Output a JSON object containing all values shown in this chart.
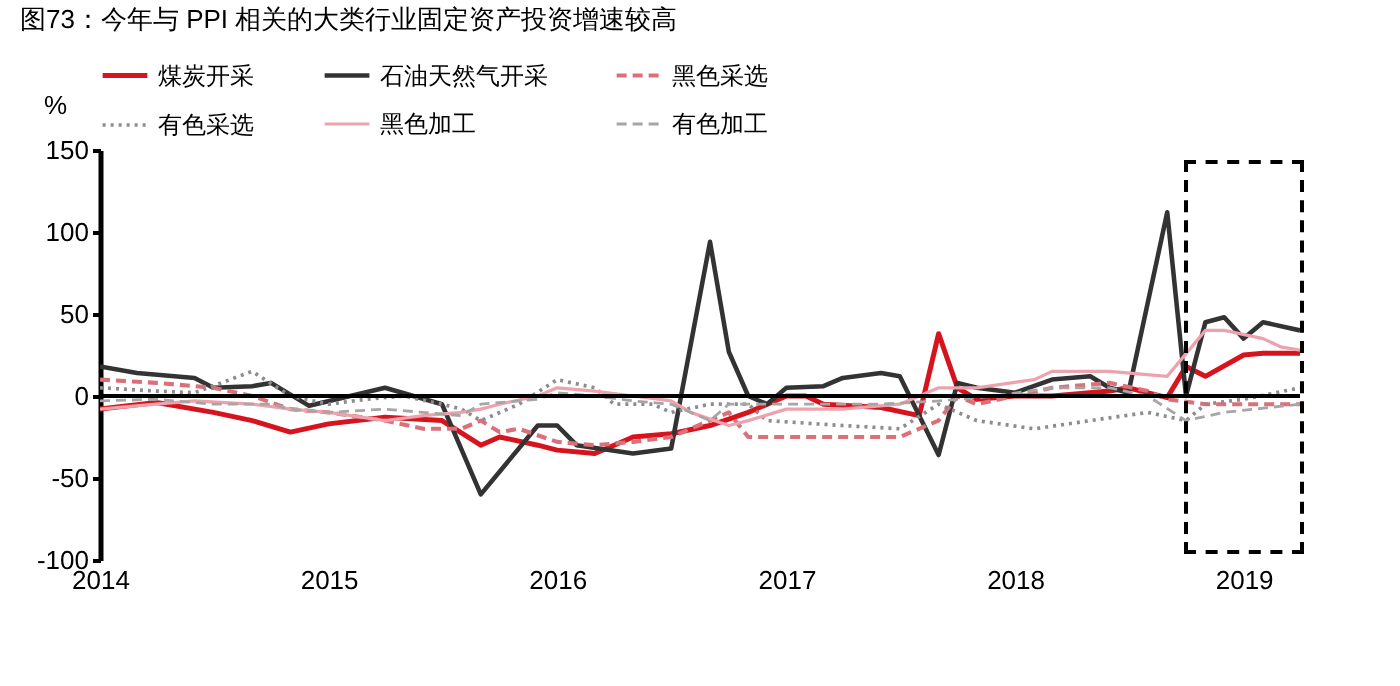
{
  "chart_data": {
    "type": "line",
    "title": "图73：今年与 PPI 相关的大类行业固定资产投资增速较高",
    "ylabel": "%",
    "ylim": [
      -100,
      150
    ],
    "yticks": [
      -100,
      -50,
      0,
      50,
      100,
      150
    ],
    "xlim": [
      "2014-01",
      "2019-04"
    ],
    "xticks": [
      "2014",
      "2015",
      "2016",
      "2017",
      "2018",
      "2019"
    ],
    "legend": "top",
    "grid": false,
    "ref_lines": [
      {
        "axis": "y",
        "value": 0,
        "color": "#000000"
      }
    ],
    "series": [
      {
        "name": "煤炭开采",
        "color": "#d7141e",
        "line_style": "solid",
        "x": [
          "2014-01",
          "2014-04",
          "2014-07",
          "2014-09",
          "2014-11",
          "2015-01",
          "2015-04",
          "2015-07",
          "2015-09",
          "2015-10",
          "2015-12",
          "2016-01",
          "2016-03",
          "2016-04",
          "2016-05",
          "2016-07",
          "2016-09",
          "2016-11",
          "2017-01",
          "2017-02",
          "2017-03",
          "2017-06",
          "2017-08",
          "2017-09",
          "2017-10",
          "2017-11",
          "2018-01",
          "2018-03",
          "2018-06",
          "2018-07",
          "2018-09",
          "2018-10",
          "2018-11",
          "2019-01",
          "2019-02",
          "2019-04"
        ],
        "values": [
          -8,
          -4,
          -10,
          -15,
          -22,
          -17,
          -13,
          -15,
          -30,
          -25,
          -30,
          -33,
          -35,
          -30,
          -25,
          -23,
          -18,
          -10,
          0,
          0,
          -5,
          -7,
          -12,
          38,
          5,
          -2,
          0,
          0,
          3,
          5,
          -1,
          18,
          12,
          25,
          26,
          26
        ]
      },
      {
        "name": "石油天然气开采",
        "color": "#333333",
        "line_style": "solid",
        "x": [
          "2014-01",
          "2014-03",
          "2014-06",
          "2014-07",
          "2014-09",
          "2014-10",
          "2014-12",
          "2015-04",
          "2015-07",
          "2015-09",
          "2015-12",
          "2016-01",
          "2016-02",
          "2016-05",
          "2016-07",
          "2016-09",
          "2016-10",
          "2016-11",
          "2016-12",
          "2017-01",
          "2017-03",
          "2017-04",
          "2017-06",
          "2017-07",
          "2017-09",
          "2017-10",
          "2017-11",
          "2018-01",
          "2018-03",
          "2018-05",
          "2018-06",
          "2018-07",
          "2018-09",
          "2018-10",
          "2018-11",
          "2018-12",
          "2019-01",
          "2019-02",
          "2019-04"
        ],
        "values": [
          18,
          14,
          11,
          5,
          6,
          8,
          -6,
          5,
          -5,
          -60,
          -18,
          -18,
          -30,
          -35,
          -32,
          94,
          27,
          0,
          -5,
          5,
          6,
          11,
          14,
          12,
          -36,
          8,
          5,
          2,
          10,
          12,
          5,
          2,
          112,
          0,
          45,
          48,
          35,
          45,
          40
        ]
      },
      {
        "name": "黑色采选",
        "color": "#d9707a",
        "line_style": "dashed",
        "x": [
          "2014-01",
          "2014-04",
          "2014-07",
          "2014-09",
          "2014-11",
          "2015-01",
          "2015-04",
          "2015-06",
          "2015-08",
          "2015-09",
          "2015-10",
          "2015-11",
          "2016-01",
          "2016-03",
          "2016-05",
          "2016-07",
          "2016-08",
          "2016-10",
          "2016-11",
          "2017-01",
          "2017-05",
          "2017-07",
          "2017-09",
          "2017-10",
          "2017-11",
          "2018-03",
          "2018-06",
          "2018-08",
          "2018-09",
          "2018-11",
          "2019-04"
        ],
        "values": [
          10,
          8,
          5,
          0,
          -8,
          -10,
          -15,
          -20,
          -20,
          -15,
          -22,
          -20,
          -28,
          -30,
          -28,
          -25,
          -20,
          -10,
          -25,
          -25,
          -25,
          -25,
          -15,
          0,
          -5,
          5,
          8,
          3,
          -2,
          -5,
          -5
        ]
      },
      {
        "name": "有色采选",
        "color": "#8c8c8c",
        "line_style": "dotted",
        "x": [
          "2014-01",
          "2014-04",
          "2014-06",
          "2014-09",
          "2014-11",
          "2015-01",
          "2015-03",
          "2015-05",
          "2015-07",
          "2015-08",
          "2015-09",
          "2015-11",
          "2016-01",
          "2016-03",
          "2016-04",
          "2016-06",
          "2016-07",
          "2016-09",
          "2016-11",
          "2016-12",
          "2017-04",
          "2017-07",
          "2017-09",
          "2017-11",
          "2018-02",
          "2018-05",
          "2018-08",
          "2018-10",
          "2018-11",
          "2019-01",
          "2019-04"
        ],
        "values": [
          5,
          3,
          2,
          15,
          0,
          -5,
          -2,
          0,
          -5,
          -8,
          -15,
          -5,
          10,
          5,
          -5,
          -5,
          -10,
          -5,
          -5,
          -15,
          -18,
          -20,
          -5,
          -15,
          -20,
          -15,
          -10,
          -15,
          -5,
          -2,
          5
        ]
      },
      {
        "name": "黑色加工",
        "color": "#eda3ad",
        "line_style": "solid",
        "x": [
          "2014-01",
          "2014-04",
          "2014-06",
          "2014-09",
          "2014-11",
          "2015-01",
          "2015-04",
          "2015-06",
          "2015-08",
          "2015-09",
          "2015-10",
          "2015-12",
          "2016-01",
          "2016-03",
          "2016-05",
          "2016-07",
          "2016-08",
          "2016-10",
          "2016-11",
          "2017-01",
          "2017-04",
          "2017-07",
          "2017-09",
          "2017-11",
          "2018-02",
          "2018-03",
          "2018-06",
          "2018-09",
          "2018-11",
          "2018-12",
          "2019-02",
          "2019-03",
          "2019-04"
        ],
        "values": [
          -8,
          -5,
          -3,
          -5,
          -8,
          -10,
          -15,
          -12,
          -10,
          -8,
          -5,
          0,
          5,
          3,
          0,
          -3,
          -10,
          -18,
          -15,
          -8,
          -8,
          -5,
          5,
          5,
          10,
          15,
          15,
          12,
          40,
          40,
          35,
          30,
          28
        ]
      },
      {
        "name": "有色加工",
        "color": "#a6a6a6",
        "line_style": "dashed",
        "x": [
          "2014-01",
          "2014-04",
          "2014-07",
          "2014-10",
          "2014-11",
          "2015-01",
          "2015-04",
          "2015-06",
          "2015-08",
          "2015-09",
          "2015-12",
          "2016-01",
          "2016-03",
          "2016-05",
          "2016-07",
          "2016-09",
          "2016-10",
          "2017-02",
          "2017-06",
          "2017-09",
          "2017-12",
          "2018-03",
          "2018-06",
          "2018-08",
          "2018-10",
          "2018-12",
          "2019-04"
        ],
        "values": [
          -3,
          -2,
          -5,
          -5,
          -8,
          -10,
          -8,
          -10,
          -12,
          -5,
          -2,
          2,
          0,
          -3,
          -5,
          -15,
          -5,
          -5,
          -5,
          -3,
          0,
          5,
          5,
          0,
          -15,
          -10,
          -5
        ]
      }
    ]
  }
}
